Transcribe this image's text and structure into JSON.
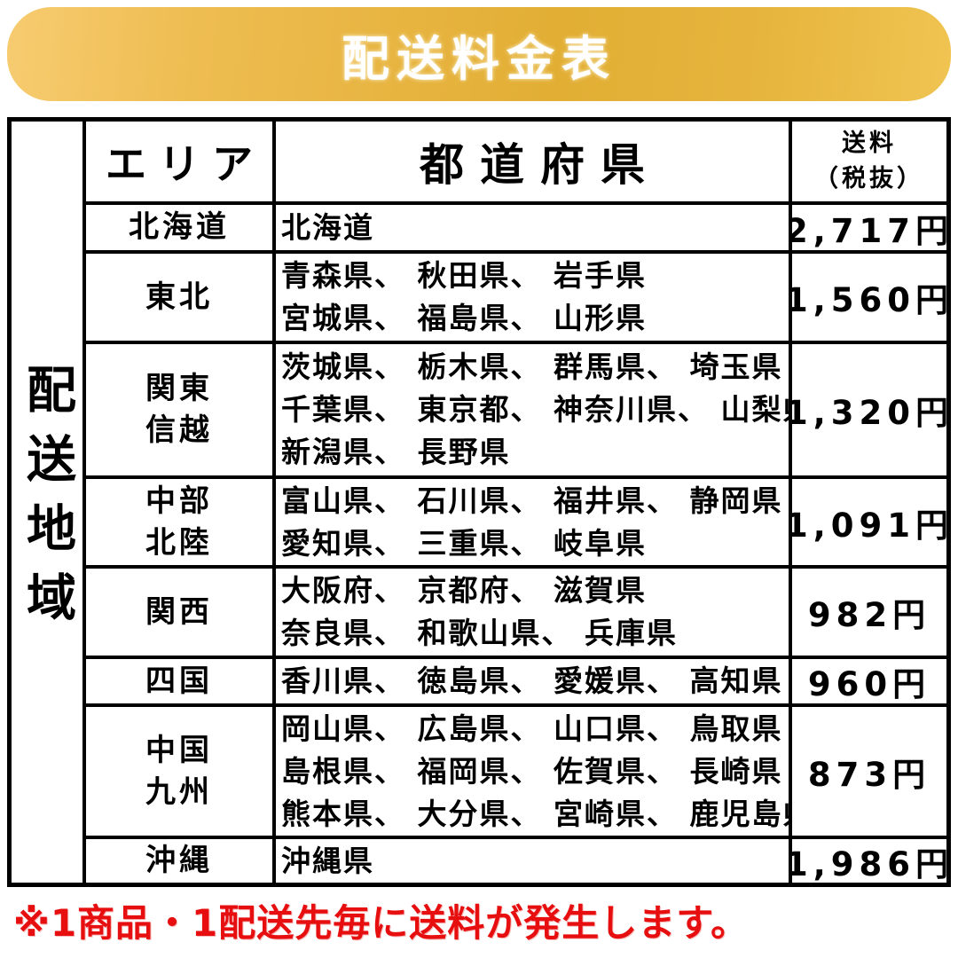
{
  "banner": {
    "title": "配送料金表"
  },
  "table": {
    "side_label": "配送地域",
    "headers": {
      "area": "エリア",
      "prefectures": "都道府県",
      "fee_line1": "送料",
      "fee_line2": "（税抜）"
    },
    "rows": [
      {
        "area_lines": [
          "北海道"
        ],
        "prefecture_lines": [
          "北海道"
        ],
        "fee": "2,717円"
      },
      {
        "area_lines": [
          "東北"
        ],
        "prefecture_lines": [
          "青森県、 秋田県、 岩手県",
          "宮城県、 福島県、 山形県"
        ],
        "fee": "1,560円"
      },
      {
        "area_lines": [
          "関東",
          "信越"
        ],
        "prefecture_lines": [
          "茨城県、 栃木県、 群馬県、 埼玉県",
          "千葉県、 東京都、 神奈川県、 山梨県",
          "新潟県、 長野県"
        ],
        "fee": "1,320円"
      },
      {
        "area_lines": [
          "中部",
          "北陸"
        ],
        "prefecture_lines": [
          "富山県、 石川県、 福井県、 静岡県",
          "愛知県、 三重県、 岐阜県"
        ],
        "fee": "1,091円"
      },
      {
        "area_lines": [
          "関西"
        ],
        "prefecture_lines": [
          "大阪府、 京都府、 滋賀県",
          "奈良県、 和歌山県、 兵庫県"
        ],
        "fee": "982円"
      },
      {
        "area_lines": [
          "四国"
        ],
        "prefecture_lines": [
          "香川県、 徳島県、 愛媛県、 高知県"
        ],
        "fee": "960円"
      },
      {
        "area_lines": [
          "中国",
          "九州"
        ],
        "prefecture_lines": [
          "岡山県、 広島県、 山口県、 鳥取県",
          "島根県、 福岡県、 佐賀県、 長崎県",
          "熊本県、 大分県、 宮崎県、 鹿児島県"
        ],
        "fee": "873円"
      },
      {
        "area_lines": [
          "沖縄"
        ],
        "prefecture_lines": [
          "沖縄県"
        ],
        "fee": "1,986円"
      }
    ]
  },
  "footer": {
    "note": "※1商品・1配送先毎に送料が発生します。"
  },
  "colors": {
    "banner_gold_light": "#f7cb70",
    "banner_gold_dark": "#e2ae34",
    "banner_text": "#ffffff",
    "grid_border": "#000000",
    "footer_red": "#e60e0e"
  }
}
